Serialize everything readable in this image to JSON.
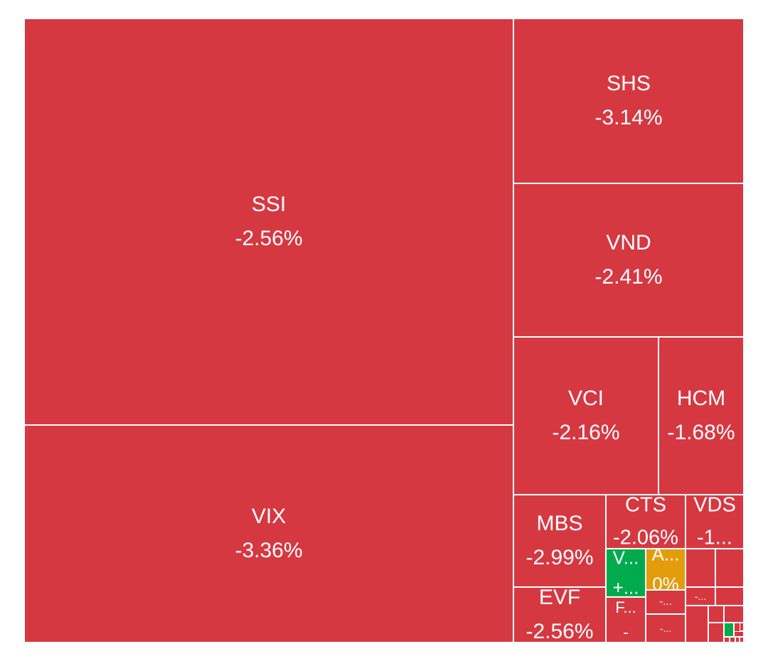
{
  "colors": {
    "down": "#d63841",
    "up": "#00ab4e",
    "flat": "#e39c0b",
    "gap": "#ffffff",
    "text": "#ffffff"
  },
  "chart_data": {
    "type": "treemap",
    "tiles": [
      {
        "label": "SSI",
        "value": "-2.56%",
        "status": "down"
      },
      {
        "label": "VIX",
        "value": "-3.36%",
        "status": "down"
      },
      {
        "label": "SHS",
        "value": "-3.14%",
        "status": "down"
      },
      {
        "label": "VND",
        "value": "-2.41%",
        "status": "down"
      },
      {
        "label": "VCI",
        "value": "-2.16%",
        "status": "down"
      },
      {
        "label": "HCM",
        "value": "-1.68%",
        "status": "down"
      },
      {
        "label": "MBS",
        "value": "-2.99%",
        "status": "down"
      },
      {
        "label": "EVF",
        "value": "-2.56%",
        "status": "down"
      },
      {
        "label": "CTS",
        "value": "-2.06%",
        "status": "down"
      },
      {
        "label": "VDS",
        "value": "-1...",
        "status": "down"
      },
      {
        "label": "V...",
        "value": "+...",
        "status": "up"
      },
      {
        "label": "A...",
        "value": "0%",
        "status": "flat"
      },
      {
        "label": "F...",
        "value": "-",
        "status": "down"
      },
      {
        "label": "",
        "value": "",
        "status": "down"
      },
      {
        "label": "",
        "value": "",
        "status": "down"
      },
      {
        "label": "",
        "value": "-...",
        "status": "down"
      },
      {
        "label": "",
        "value": "-...",
        "status": "down"
      },
      {
        "label": "",
        "value": "-...",
        "status": "down"
      },
      {
        "label": "",
        "value": "",
        "status": "down"
      },
      {
        "label": "",
        "value": "",
        "status": "down"
      },
      {
        "label": "",
        "value": "",
        "status": "down"
      },
      {
        "label": "",
        "value": "",
        "status": "down"
      },
      {
        "label": "",
        "value": "",
        "status": "up"
      },
      {
        "label": "",
        "value": "",
        "status": "down"
      },
      {
        "label": "",
        "value": "",
        "status": "down"
      },
      {
        "label": "",
        "value": "",
        "status": "down"
      },
      {
        "label": "",
        "value": "",
        "status": "down"
      },
      {
        "label": "",
        "value": "",
        "status": "down"
      },
      {
        "label": "",
        "value": "",
        "status": "down"
      },
      {
        "label": "",
        "value": "",
        "status": "down"
      },
      {
        "label": "",
        "value": "",
        "status": "down"
      }
    ]
  }
}
